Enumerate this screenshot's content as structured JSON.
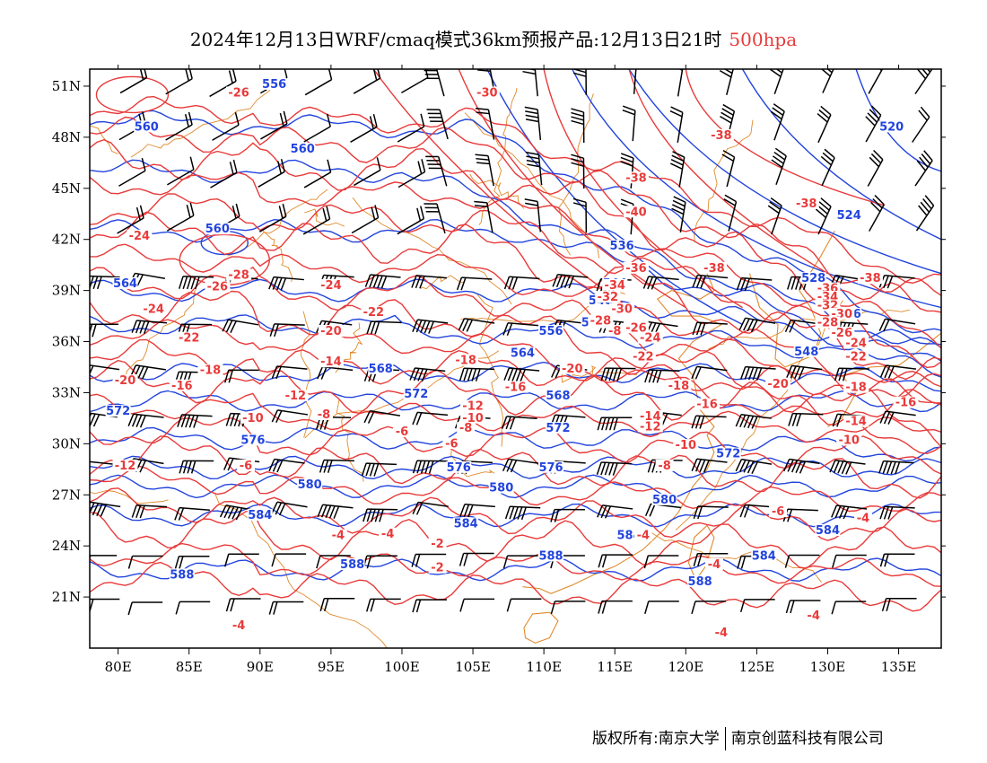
{
  "title": {
    "main": "2024年12月13日WRF/cmaq模式36km预报产品:12月13日21时",
    "level": "500hpa"
  },
  "colors": {
    "temperature": "#e83a3a",
    "height": "#2244dd",
    "coast": "#e08a2c",
    "wind": "#000000"
  },
  "axes": {
    "lon_labels": [
      "80E",
      "85E",
      "90E",
      "95E",
      "100E",
      "105E",
      "110E",
      "115E",
      "120E",
      "125E",
      "130E",
      "135E"
    ],
    "lon_values": [
      80,
      85,
      90,
      95,
      100,
      105,
      110,
      115,
      120,
      125,
      130,
      135
    ],
    "lat_labels": [
      "51N",
      "48N",
      "45N",
      "42N",
      "39N",
      "36N",
      "33N",
      "30N",
      "27N",
      "24N",
      "21N"
    ],
    "lat_values": [
      51,
      48,
      45,
      42,
      39,
      36,
      33,
      30,
      27,
      24,
      21
    ],
    "lon_range": [
      78,
      138
    ],
    "lat_range": [
      18,
      52
    ]
  },
  "height_contours": [
    {
      "value": "556",
      "lon": 91,
      "lat": 51
    },
    {
      "value": "560",
      "lon": 82,
      "lat": 48.5
    },
    {
      "value": "560",
      "lon": 93,
      "lat": 47.2
    },
    {
      "value": "560",
      "lon": 87,
      "lat": 42.5
    },
    {
      "value": "564",
      "lon": 80.5,
      "lat": 39.3
    },
    {
      "value": "568",
      "lon": 98.5,
      "lat": 34.3
    },
    {
      "value": "572",
      "lon": 80,
      "lat": 31.8
    },
    {
      "value": "572",
      "lon": 101,
      "lat": 32.8
    },
    {
      "value": "572",
      "lon": 111,
      "lat": 30.8
    },
    {
      "value": "572",
      "lon": 123,
      "lat": 29.3
    },
    {
      "value": "576",
      "lon": 89.5,
      "lat": 30.1
    },
    {
      "value": "576",
      "lon": 104,
      "lat": 28.5
    },
    {
      "value": "576",
      "lon": 110.5,
      "lat": 28.5
    },
    {
      "value": "580",
      "lon": 93.5,
      "lat": 27.5
    },
    {
      "value": "580",
      "lon": 107,
      "lat": 27.3
    },
    {
      "value": "580",
      "lon": 118.5,
      "lat": 26.6
    },
    {
      "value": "584",
      "lon": 90,
      "lat": 25.7
    },
    {
      "value": "584",
      "lon": 104.5,
      "lat": 25.2
    },
    {
      "value": "584",
      "lon": 116,
      "lat": 24.5
    },
    {
      "value": "584",
      "lon": 130,
      "lat": 24.8
    },
    {
      "value": "584",
      "lon": 125.5,
      "lat": 23.3
    },
    {
      "value": "588",
      "lon": 84.5,
      "lat": 22.2
    },
    {
      "value": "588",
      "lon": 96.5,
      "lat": 22.8
    },
    {
      "value": "588",
      "lon": 110.5,
      "lat": 23.3
    },
    {
      "value": "588",
      "lon": 121,
      "lat": 21.8
    },
    {
      "value": "520",
      "lon": 134.5,
      "lat": 48.5
    },
    {
      "value": "524",
      "lon": 131.5,
      "lat": 43.3
    },
    {
      "value": "528",
      "lon": 129,
      "lat": 39.6
    },
    {
      "value": "536",
      "lon": 115.5,
      "lat": 41.5
    },
    {
      "value": "536",
      "lon": 131.5,
      "lat": 37.5
    },
    {
      "value": "544",
      "lon": 115,
      "lat": 39.3
    },
    {
      "value": "548",
      "lon": 114,
      "lat": 38.3
    },
    {
      "value": "548",
      "lon": 128.5,
      "lat": 35.3
    },
    {
      "value": "552",
      "lon": 113.5,
      "lat": 37
    },
    {
      "value": "556",
      "lon": 110.5,
      "lat": 36.5
    },
    {
      "value": "564",
      "lon": 108.5,
      "lat": 35.2
    },
    {
      "value": "568",
      "lon": 111,
      "lat": 32.7
    }
  ],
  "temperature_contours": [
    {
      "value": "-26",
      "lon": 88.5,
      "lat": 50.5
    },
    {
      "value": "-30",
      "lon": 106,
      "lat": 50.5
    },
    {
      "value": "-38",
      "lon": 122.5,
      "lat": 48
    },
    {
      "value": "-38",
      "lon": 116.5,
      "lat": 45.5
    },
    {
      "value": "-38",
      "lon": 128.5,
      "lat": 44
    },
    {
      "value": "-40",
      "lon": 116.5,
      "lat": 43.5
    },
    {
      "value": "-24",
      "lon": 81.5,
      "lat": 42.1
    },
    {
      "value": "-26",
      "lon": 87,
      "lat": 39.1
    },
    {
      "value": "-28",
      "lon": 88.5,
      "lat": 39.8
    },
    {
      "value": "-24",
      "lon": 95,
      "lat": 39.2
    },
    {
      "value": "-24",
      "lon": 82.5,
      "lat": 37.8
    },
    {
      "value": "-22",
      "lon": 98,
      "lat": 37.6
    },
    {
      "value": "-22",
      "lon": 85,
      "lat": 36.1
    },
    {
      "value": "-20",
      "lon": 95,
      "lat": 36.5
    },
    {
      "value": "-18",
      "lon": 86.5,
      "lat": 34.2
    },
    {
      "value": "-20",
      "lon": 80.5,
      "lat": 33.6
    },
    {
      "value": "-16",
      "lon": 84.5,
      "lat": 33.3
    },
    {
      "value": "-14",
      "lon": 95,
      "lat": 34.7
    },
    {
      "value": "-12",
      "lon": 92.5,
      "lat": 32.7
    },
    {
      "value": "-10",
      "lon": 89.5,
      "lat": 31.4
    },
    {
      "value": "-8",
      "lon": 94.5,
      "lat": 31.6
    },
    {
      "value": "-12",
      "lon": 80.5,
      "lat": 28.6
    },
    {
      "value": "-6",
      "lon": 89,
      "lat": 28.6
    },
    {
      "value": "-6",
      "lon": 100,
      "lat": 30.6
    },
    {
      "value": "-6",
      "lon": 103.5,
      "lat": 29.9
    },
    {
      "value": "-18",
      "lon": 104.5,
      "lat": 34.8
    },
    {
      "value": "-16",
      "lon": 108,
      "lat": 33.2
    },
    {
      "value": "-12",
      "lon": 105,
      "lat": 32.1
    },
    {
      "value": "-10",
      "lon": 105,
      "lat": 31.4
    },
    {
      "value": "-8",
      "lon": 104.5,
      "lat": 30.8
    },
    {
      "value": "-36",
      "lon": 116.5,
      "lat": 40.2
    },
    {
      "value": "-34",
      "lon": 115,
      "lat": 39.2
    },
    {
      "value": "-32",
      "lon": 114.5,
      "lat": 38.5
    },
    {
      "value": "-30",
      "lon": 115.5,
      "lat": 37.8
    },
    {
      "value": "-28",
      "lon": 114,
      "lat": 37.1
    },
    {
      "value": "-26",
      "lon": 116.5,
      "lat": 36.7
    },
    {
      "value": "-24",
      "lon": 117.5,
      "lat": 36.1
    },
    {
      "value": "-22",
      "lon": 117,
      "lat": 35
    },
    {
      "value": "-20",
      "lon": 112,
      "lat": 34.3
    },
    {
      "value": "-18",
      "lon": 119.5,
      "lat": 33.3
    },
    {
      "value": "-16",
      "lon": 121.5,
      "lat": 32.2
    },
    {
      "value": "-14",
      "lon": 117.5,
      "lat": 31.5
    },
    {
      "value": "-12",
      "lon": 117.5,
      "lat": 30.9
    },
    {
      "value": "-10",
      "lon": 120,
      "lat": 29.8
    },
    {
      "value": "-8",
      "lon": 118.5,
      "lat": 28.6
    },
    {
      "value": "-38",
      "lon": 122,
      "lat": 40.2
    },
    {
      "value": "-38",
      "lon": 133,
      "lat": 39.6
    },
    {
      "value": "-36",
      "lon": 130,
      "lat": 39
    },
    {
      "value": "-34",
      "lon": 130,
      "lat": 38.5
    },
    {
      "value": "-32",
      "lon": 130,
      "lat": 38
    },
    {
      "value": "-30",
      "lon": 131,
      "lat": 37.5
    },
    {
      "value": "-28",
      "lon": 130,
      "lat": 37
    },
    {
      "value": "-26",
      "lon": 131,
      "lat": 36.4
    },
    {
      "value": "-24",
      "lon": 132,
      "lat": 35.8
    },
    {
      "value": "-22",
      "lon": 132,
      "lat": 35
    },
    {
      "value": "-20",
      "lon": 126.5,
      "lat": 33.4
    },
    {
      "value": "-18",
      "lon": 132,
      "lat": 33.2
    },
    {
      "value": "-16",
      "lon": 135.5,
      "lat": 32.3
    },
    {
      "value": "-14",
      "lon": 132,
      "lat": 31.2
    },
    {
      "value": "-10",
      "lon": 131.5,
      "lat": 30.1
    },
    {
      "value": "-6",
      "lon": 126.5,
      "lat": 25.9
    },
    {
      "value": "-4",
      "lon": 132.5,
      "lat": 25.5
    },
    {
      "value": "-4",
      "lon": 117,
      "lat": 24.5
    },
    {
      "value": "-4",
      "lon": 99,
      "lat": 24.6
    },
    {
      "value": "-4",
      "lon": 95.5,
      "lat": 24.5
    },
    {
      "value": "-2",
      "lon": 102.5,
      "lat": 24
    },
    {
      "value": "-2",
      "lon": 102.5,
      "lat": 22.6
    },
    {
      "value": "-4",
      "lon": 122,
      "lat": 22.8
    },
    {
      "value": "-4",
      "lon": 129,
      "lat": 19.8
    },
    {
      "value": "-4",
      "lon": 122.5,
      "lat": 18.8
    },
    {
      "value": "-4",
      "lon": 88.5,
      "lat": 19.2
    },
    {
      "value": "-8",
      "lon": 115,
      "lat": 36.5
    }
  ],
  "copyright": {
    "left": "版权所有:南京大学",
    "right": "南京创蓝科技有限公司"
  }
}
